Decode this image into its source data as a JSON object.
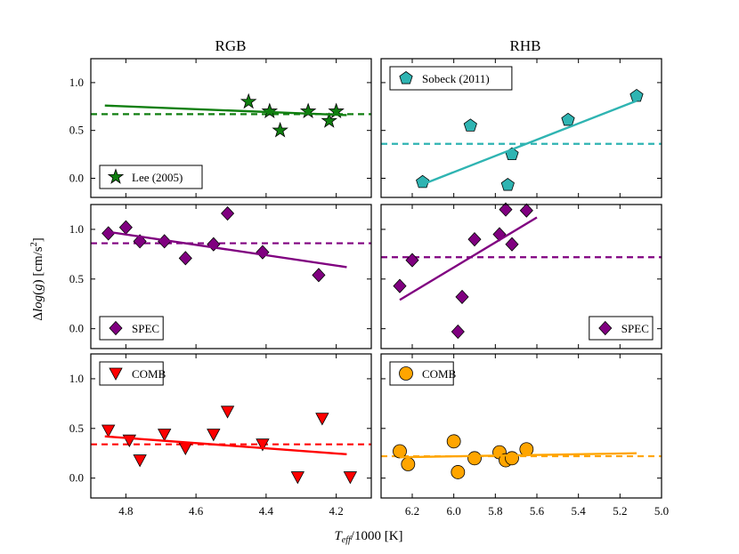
{
  "chart_data": {
    "type": "scatter",
    "column_titles": [
      "RGB",
      "RHB"
    ],
    "xlabel": "T_eff/1000 [K]",
    "ylabel": "Δlog(g) [cm/s²]",
    "ylim": [
      -0.2,
      1.25
    ],
    "y_ticks": [
      "0.0",
      "0.5",
      "1.0"
    ],
    "columns": [
      {
        "xlim": [
          4.9,
          4.1
        ],
        "x_ticks": [
          "4.8",
          "4.6",
          "4.4",
          "4.2"
        ]
      },
      {
        "xlim": [
          6.35,
          5.0
        ],
        "x_ticks": [
          "6.2",
          "6.0",
          "5.8",
          "5.6",
          "5.4",
          "5.2",
          "5.0"
        ]
      }
    ],
    "panels": [
      {
        "col": 0,
        "row": 0,
        "label": "Lee (2005)",
        "color": "#107f10",
        "marker": "star",
        "legend_loc": "lower-left",
        "x": [
          4.45,
          4.39,
          4.36,
          4.28,
          4.22,
          4.2
        ],
        "y": [
          0.8,
          0.7,
          0.5,
          0.7,
          0.6,
          0.7
        ],
        "fit": {
          "x": [
            4.86,
            4.17
          ],
          "y": [
            0.76,
            0.66
          ]
        },
        "mean": 0.67
      },
      {
        "col": 1,
        "row": 0,
        "label": "Sobeck (2011)",
        "color": "#2fb4b2",
        "marker": "pentagon",
        "legend_loc": "upper-left",
        "x": [
          6.15,
          5.92,
          5.72,
          5.74,
          5.45,
          5.12
        ],
        "y": [
          -0.04,
          0.55,
          0.25,
          -0.07,
          0.61,
          0.86
        ],
        "fit": {
          "x": [
            6.17,
            5.12
          ],
          "y": [
            -0.08,
            0.81
          ]
        },
        "mean": 0.36
      },
      {
        "col": 0,
        "row": 1,
        "label": "SPEC",
        "color": "#800080",
        "marker": "diamond",
        "legend_loc": "lower-left",
        "x": [
          4.85,
          4.8,
          4.76,
          4.69,
          4.63,
          4.55,
          4.51,
          4.41,
          4.25
        ],
        "y": [
          0.96,
          1.02,
          0.88,
          0.88,
          0.71,
          0.85,
          1.16,
          0.77,
          0.54
        ],
        "fit": {
          "x": [
            4.86,
            4.17
          ],
          "y": [
            0.98,
            0.62
          ]
        },
        "mean": 0.86
      },
      {
        "col": 1,
        "row": 1,
        "label": "SPEC",
        "color": "#800080",
        "marker": "diamond",
        "legend_loc": "lower-right",
        "x": [
          6.26,
          6.2,
          5.9,
          5.96,
          5.98,
          5.78,
          5.75,
          5.72,
          5.65
        ],
        "y": [
          0.43,
          0.69,
          0.9,
          0.32,
          -0.03,
          0.95,
          1.2,
          0.85,
          1.19
        ],
        "fit": {
          "x": [
            6.26,
            5.6
          ],
          "y": [
            0.29,
            1.12
          ]
        },
        "mean": 0.72
      },
      {
        "col": 0,
        "row": 2,
        "label": "COMB",
        "color": "#ff0000",
        "marker": "triangle-down",
        "legend_loc": "upper-left",
        "x": [
          4.85,
          4.79,
          4.76,
          4.69,
          4.63,
          4.55,
          4.51,
          4.41,
          4.31,
          4.24,
          4.16
        ],
        "y": [
          0.48,
          0.38,
          0.18,
          0.44,
          0.3,
          0.44,
          0.67,
          0.34,
          0.01,
          0.6,
          0.01
        ],
        "fit": {
          "x": [
            4.86,
            4.17
          ],
          "y": [
            0.42,
            0.24
          ]
        },
        "mean": 0.34
      },
      {
        "col": 1,
        "row": 2,
        "label": "COMB",
        "color": "#ffa500",
        "marker": "circle",
        "legend_loc": "upper-left",
        "x": [
          6.26,
          6.22,
          6.0,
          5.98,
          5.9,
          5.78,
          5.75,
          5.72,
          5.65
        ],
        "y": [
          0.27,
          0.14,
          0.37,
          0.06,
          0.2,
          0.26,
          0.18,
          0.2,
          0.29
        ],
        "fit": {
          "x": [
            6.26,
            5.12
          ],
          "y": [
            0.21,
            0.25
          ]
        },
        "mean": 0.22
      }
    ]
  }
}
